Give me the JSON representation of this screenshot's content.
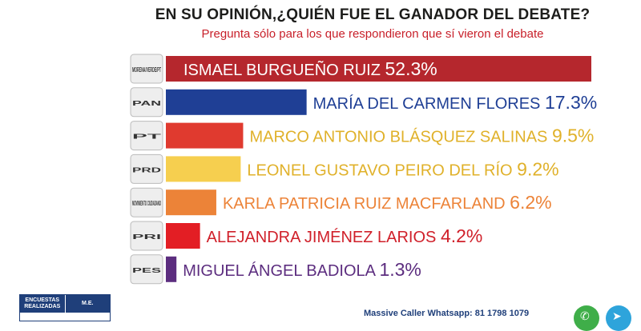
{
  "header": {
    "title": "EN SU OPINIÓN,¿QUIÉN FUE EL GANADOR DEL DEBATE?",
    "subtitle": "Pregunta sólo para los que respondieron que sí vieron el debate"
  },
  "chart_data": {
    "type": "bar",
    "orientation": "horizontal",
    "categories": [
      "ISMAEL BURGUEÑO RUIZ",
      "MARÍA DEL CARMEN FLORES",
      "MARCO ANTONIO BLÁSQUEZ SALINAS",
      "LEONEL GUSTAVO PEIRO DEL RÍO",
      "KARLA PATRICIA RUIZ MACFARLAND",
      "ALEJANDRA JIMÉNEZ LARIOS",
      "MIGUEL ÁNGEL BADIOLA"
    ],
    "values": [
      52.3,
      17.3,
      9.5,
      9.2,
      6.2,
      4.2,
      1.3
    ],
    "value_labels": [
      "52.3%",
      "17.3%",
      "9.5%",
      "9.2%",
      "6.2%",
      "4.2%",
      "1.3%"
    ],
    "party_logos": [
      "MORENA/VERDE/PT",
      "PAN",
      "PT",
      "PRD",
      "MOVIMIENTO CIUDADANO",
      "PRI",
      "PES"
    ],
    "bar_colors": [
      "#b5272d",
      "#1f3f95",
      "#e03a2f",
      "#f6cf4f",
      "#ec8338",
      "#e31e24",
      "#5c2d7f"
    ],
    "label_colors": [
      "#ffffff",
      "#1f3f95",
      "#e0b12a",
      "#e0b12a",
      "#ec8338",
      "#d0202a",
      "#5c2d7f"
    ],
    "xlim": [
      0,
      52.3
    ]
  },
  "footer": {
    "table_header_1": "ENCUESTAS REALIZADAS",
    "table_header_2": "M.E.",
    "contact": "Massive Caller Whatsapp: 81 1798 1079"
  }
}
